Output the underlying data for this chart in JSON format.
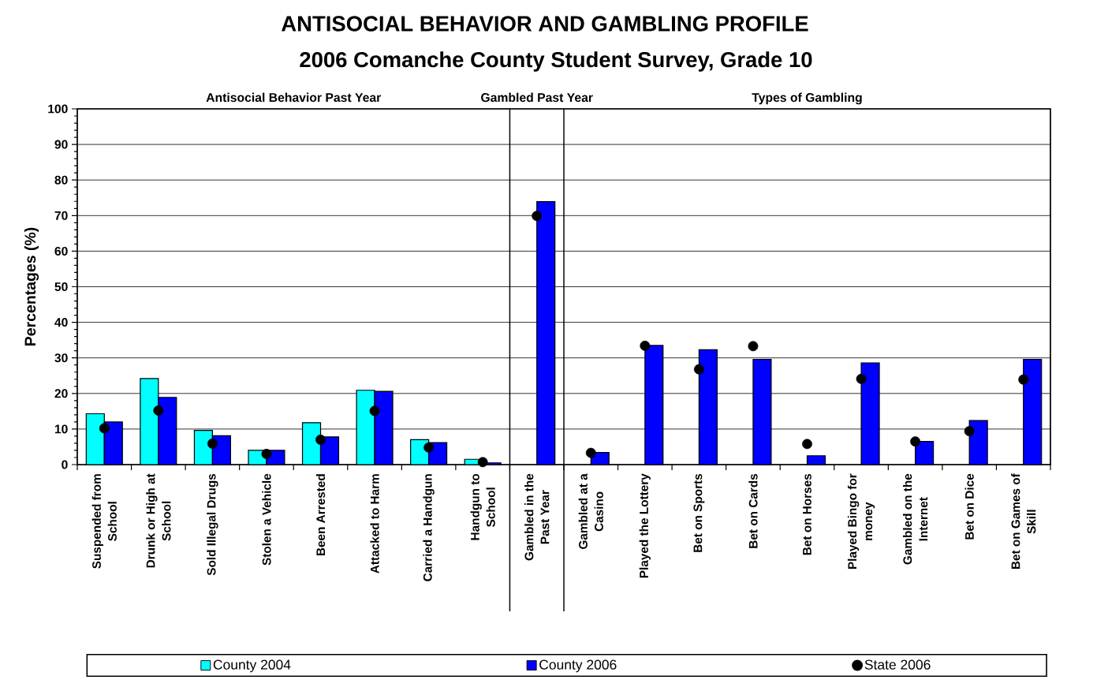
{
  "chart_data": {
    "type": "bar",
    "title": "ANTISOCIAL BEHAVIOR AND GAMBLING PROFILE",
    "subtitle": "2006 Comanche County Student Survey, Grade 10",
    "ylabel": "Percentages (%)",
    "categories": [
      "Suspended from School",
      "Drunk or High at School",
      "Sold Illegal Drugs",
      "Stolen a Vehicle",
      "Been Arrested",
      "Attacked to Harm",
      "Carried a Handgun",
      "Handgun to School",
      "Gambled in the Past Year",
      "Gambled at a Casino",
      "Played the Lottery",
      "Bet on Sports",
      "Bet on Cards",
      "Bet on Horses",
      "Played Bingo for money",
      "Gambled on the Internet",
      "Bet on Dice",
      "Bet on Games of Skill"
    ],
    "series": [
      {
        "name": "County 2004",
        "color": "#00ffff",
        "values": [
          14.3,
          24.2,
          9.6,
          4.0,
          11.8,
          20.9,
          7.0,
          1.5,
          null,
          null,
          null,
          null,
          null,
          null,
          null,
          null,
          null,
          null
        ]
      },
      {
        "name": "County 2006",
        "color": "#0000ff",
        "values": [
          12.0,
          18.9,
          8.1,
          4.0,
          7.8,
          20.6,
          6.2,
          0.5,
          73.9,
          3.4,
          33.5,
          32.3,
          29.6,
          2.5,
          28.6,
          6.5,
          12.4,
          29.6
        ]
      },
      {
        "name": "State 2006",
        "type": "scatter",
        "marker": "circle",
        "color": "#000000",
        "values": [
          10.2,
          15.2,
          5.9,
          3.0,
          7.0,
          15.1,
          4.8,
          0.7,
          69.9,
          3.3,
          33.4,
          26.8,
          33.3,
          5.8,
          24.1,
          6.5,
          9.4,
          23.9
        ]
      }
    ],
    "ylim": [
      0,
      100
    ],
    "yticks": [
      0,
      10,
      20,
      30,
      40,
      50,
      60,
      70,
      80,
      90,
      100
    ],
    "grid": "y",
    "legend": "bottom",
    "annotations": [
      "Antisocial Behavior Past Year",
      "Gambled Past Year",
      "Types of Gambling"
    ]
  }
}
